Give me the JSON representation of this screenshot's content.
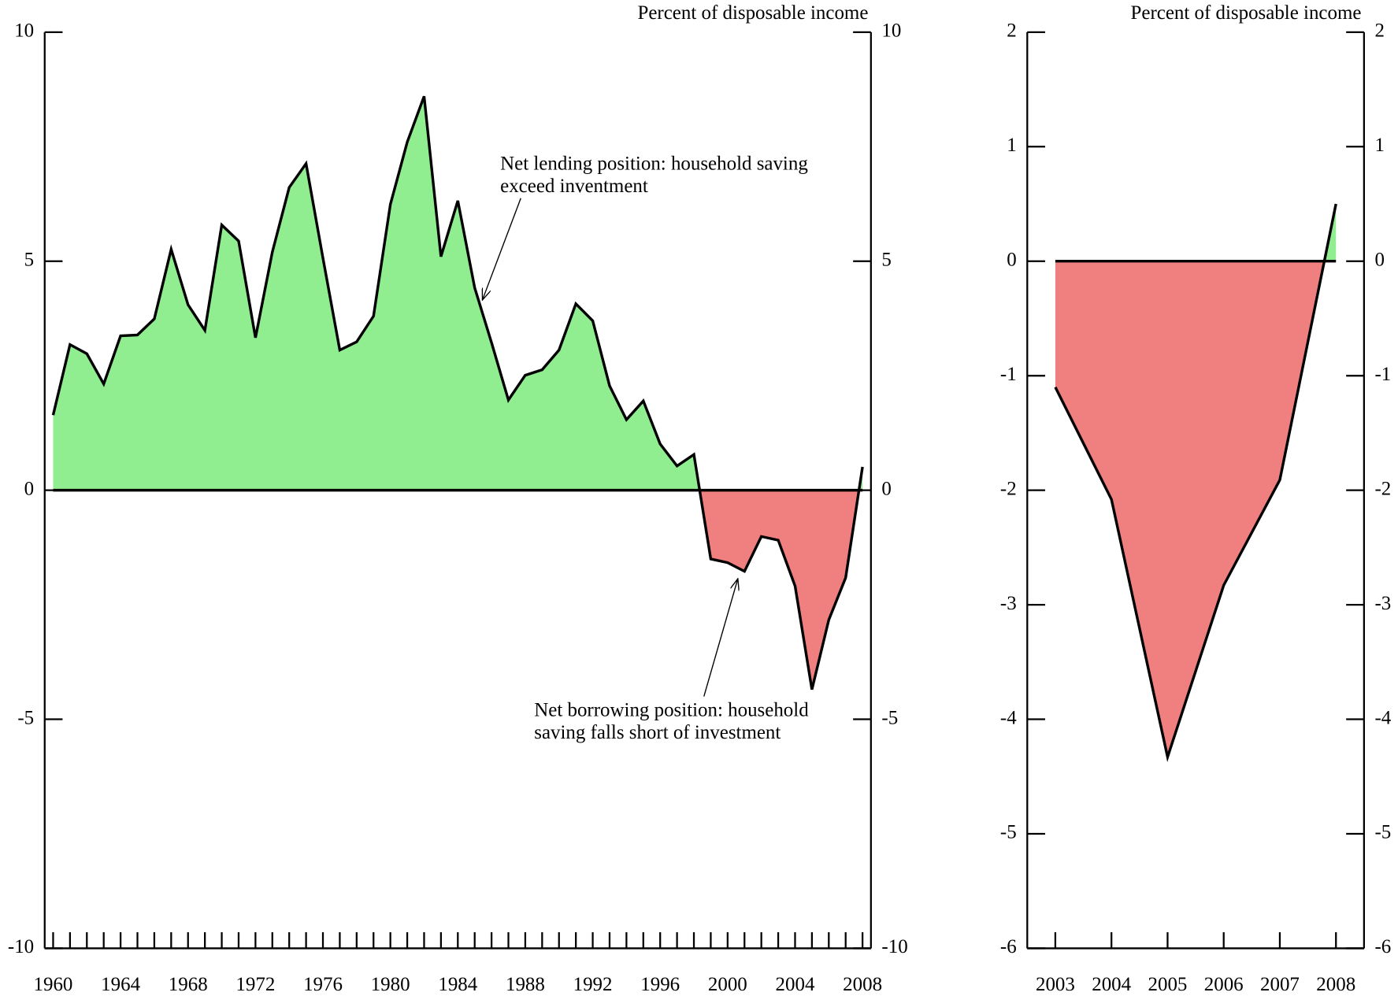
{
  "chart_data": [
    {
      "type": "area",
      "y_label": "Percent of disposable income",
      "x": [
        1960,
        1961,
        1962,
        1963,
        1964,
        1965,
        1966,
        1967,
        1968,
        1969,
        1970,
        1971,
        1972,
        1973,
        1974,
        1975,
        1976,
        1977,
        1978,
        1979,
        1980,
        1981,
        1982,
        1983,
        1984,
        1985,
        1986,
        1987,
        1988,
        1989,
        1990,
        1991,
        1992,
        1993,
        1994,
        1995,
        1996,
        1997,
        1998,
        1999,
        2000,
        2001,
        2002,
        2003,
        2004,
        2005,
        2006,
        2007,
        2008
      ],
      "values": [
        1.64,
        3.18,
        2.98,
        2.32,
        3.37,
        3.39,
        3.74,
        5.26,
        4.05,
        3.49,
        5.79,
        5.44,
        3.33,
        5.2,
        6.61,
        7.13,
        5.07,
        3.06,
        3.24,
        3.8,
        6.24,
        7.6,
        8.6,
        5.1,
        6.32,
        4.42,
        3.22,
        1.97,
        2.51,
        2.63,
        3.06,
        4.07,
        3.7,
        2.28,
        1.54,
        1.95,
        1.01,
        0.53,
        0.78,
        -1.5,
        -1.58,
        -1.77,
        -1.01,
        -1.09,
        -2.09,
        -4.35,
        -2.83,
        -1.91,
        0.51
      ],
      "pos_color": "#90ee90",
      "neg_color": "#f08080",
      "line_color": "#000000",
      "xlim": [
        1959.5,
        2008.5
      ],
      "xticks": [
        1960,
        1964,
        1968,
        1972,
        1976,
        1980,
        1984,
        1988,
        1992,
        1996,
        2000,
        2004,
        2008
      ],
      "minor_xticks": true,
      "ylim": [
        -10,
        10
      ],
      "yticks": [
        -10,
        -5,
        0,
        5,
        10
      ],
      "annotations": [
        {
          "lines": [
            "Net lending position: household saving",
            "exceed inventment"
          ]
        },
        {
          "lines": [
            "Net borrowing position: household",
            "saving falls short of investment"
          ]
        }
      ]
    },
    {
      "type": "area",
      "y_label": "Percent of disposable income",
      "x": [
        2003,
        2004,
        2005,
        2006,
        2007,
        2008
      ],
      "values": [
        -1.1,
        -2.08,
        -4.33,
        -2.83,
        -1.91,
        0.5
      ],
      "pos_color": "#90ee90",
      "neg_color": "#f08080",
      "line_color": "#000000",
      "xlim": [
        2002.5,
        2008.5
      ],
      "xticks": [
        2003,
        2004,
        2005,
        2006,
        2007,
        2008
      ],
      "minor_xticks": false,
      "ylim": [
        -6,
        2
      ],
      "yticks": [
        -6,
        -5,
        -4,
        -3,
        -2,
        -1,
        0,
        1,
        2
      ]
    }
  ]
}
